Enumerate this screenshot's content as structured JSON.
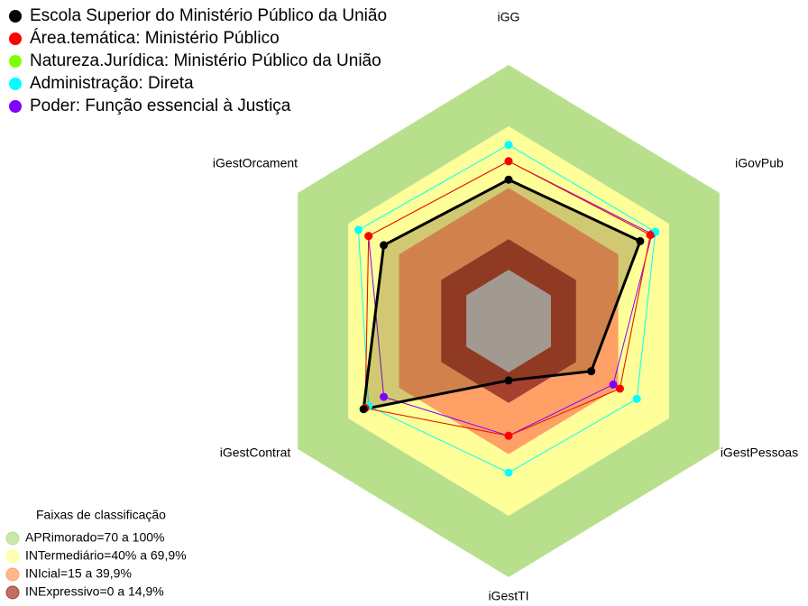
{
  "chart_data": {
    "type": "radar",
    "categories": [
      "iGG",
      "iGovPub",
      "iGestPessoas",
      "iGestTI",
      "iGestContrat",
      "iGestOrcament"
    ],
    "rlim": [
      -0.25,
      1
    ],
    "band_legend_title": "Faixas de classificação",
    "bands": [
      {
        "label": "APRimorado=70 a 100%",
        "min": 0.7,
        "max": 1,
        "color": "#b8e08c"
      },
      {
        "label": "INTermediário=40% a 69,9%",
        "min": 0.4,
        "max": 0.7,
        "color": "#ffff99"
      },
      {
        "label": "INIcial=15 a 39,9%",
        "min": 0.15,
        "max": 0.4,
        "color": "#ffa066"
      },
      {
        "label": "INExpressivo=0 a 14,9%",
        "min": 0,
        "max": 0.15,
        "color": "#a84030"
      }
    ],
    "series": [
      {
        "name": "Escola Superior do Ministério Público da União",
        "color": "#000000",
        "values": [
          0.44,
          0.53,
          0.24,
          0.04,
          0.61,
          0.49
        ]
      },
      {
        "name": "Área.temática: Ministério Público",
        "color": "#ff0000",
        "values": [
          0.53,
          0.59,
          0.41,
          0.31,
          0.6,
          0.58
        ]
      },
      {
        "name": "Natureza.Jurídica: Ministério Público da União",
        "color": "#80ff00",
        "values": [
          0.53,
          0.59,
          0.41,
          0.31,
          0.6,
          0.58
        ]
      },
      {
        "name": "Administração: Direta",
        "color": "#00ffff",
        "values": [
          0.61,
          0.62,
          0.51,
          0.49,
          0.58,
          0.64
        ]
      },
      {
        "name": "Poder: Função essencial à Justiça",
        "color": "#8000ff",
        "values": [
          0.53,
          0.6,
          0.37,
          0.31,
          0.49,
          0.58
        ]
      }
    ]
  }
}
